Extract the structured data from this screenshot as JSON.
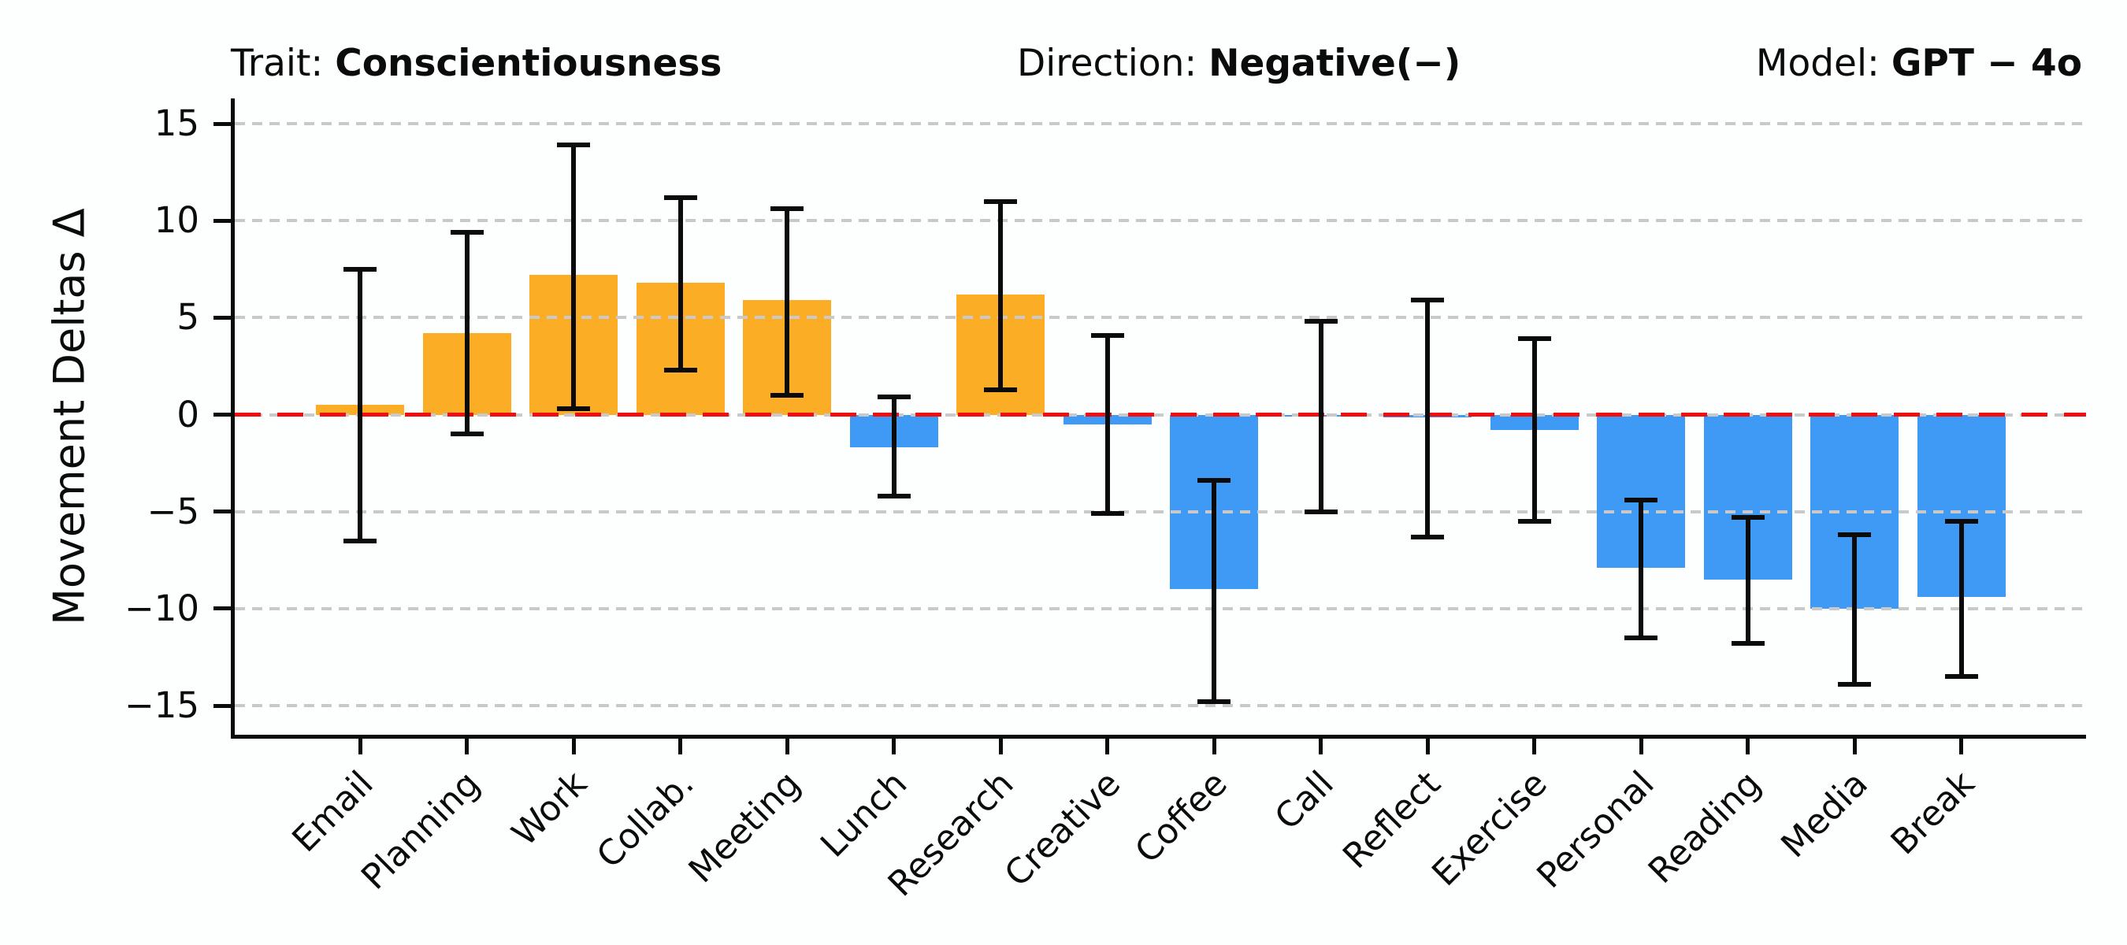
{
  "header": {
    "trait_label": "Trait:",
    "trait_value": "Conscientiousness",
    "direction_label": "Direction:",
    "direction_value": "Negative(−)",
    "model_label": "Model:",
    "model_value": "GPT − 4o"
  },
  "chart_data": {
    "type": "bar",
    "title": "",
    "xlabel": "",
    "ylabel": "Movement Deltas Δ",
    "ylim": [
      -16.5,
      16.3
    ],
    "yticks": [
      15,
      10,
      5,
      0,
      -5,
      -10,
      -15
    ],
    "grid": "horizontal dashed gridlines at each ytick",
    "legend": "none",
    "zero_line": {
      "value": 0,
      "style": "dashed",
      "color": "#f10e0e"
    },
    "categories": [
      "Email",
      "Planning",
      "Work",
      "Collab.",
      "Meeting",
      "Lunch",
      "Research",
      "Creative",
      "Coffee",
      "Call",
      "Reflect",
      "Exercise",
      "Personal",
      "Reading",
      "Media",
      "Break"
    ],
    "series": [
      {
        "name": "Movement Deltas",
        "values": [
          0.5,
          4.2,
          7.2,
          6.8,
          5.9,
          -1.7,
          6.2,
          -0.5,
          -9.0,
          -0.1,
          -0.15,
          -0.8,
          -7.9,
          -8.5,
          -10.0,
          -9.4
        ],
        "error_low": [
          -6.5,
          -1.0,
          0.3,
          2.3,
          1.0,
          -4.2,
          1.3,
          -5.1,
          -14.8,
          -5.0,
          -6.3,
          -5.5,
          -11.5,
          -11.8,
          -13.9,
          -13.5
        ],
        "error_high": [
          7.5,
          9.4,
          13.9,
          11.2,
          10.6,
          0.9,
          11.0,
          4.1,
          -3.4,
          4.8,
          5.9,
          3.9,
          -4.4,
          -5.3,
          -6.2,
          -5.5
        ]
      }
    ],
    "colors": {
      "positive_bar": "#fbad26",
      "negative_bar": "#3f9af5",
      "error_bar": "#0b0b0b",
      "gridline": "#c9c9c9",
      "zero_line": "#f10e0e"
    }
  }
}
